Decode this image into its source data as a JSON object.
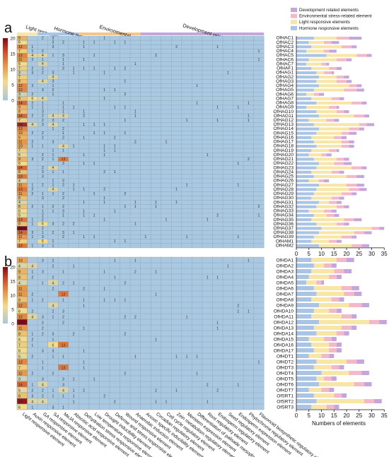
{
  "panels": {
    "a": "a",
    "b": "b"
  },
  "category_groups": {
    "light": "Light responsive elements",
    "hormone": "Hormone responsive elements",
    "env": "Environmental stress-related element",
    "dev": "Development related elements"
  },
  "legend": {
    "items": [
      {
        "label": "Development related elements",
        "color": "#c5a6dc"
      },
      {
        "label": "Environmental stress-related element",
        "color": "#f3b9c8"
      },
      {
        "label": "Light responsive elements",
        "color": "#f7e6a6"
      },
      {
        "label": "Hormone responsive elements",
        "color": "#a9c4e4"
      }
    ]
  },
  "colorbar": {
    "ticks": [
      "20",
      "15",
      "10",
      "5",
      "0"
    ]
  },
  "columns": [
    "Light responsive element",
    "Auxin responsive element",
    "GA responsive element",
    "SA responsive element",
    "MeJA responsive element",
    "Abscisic acid responsive element",
    "Dehydration stress responsive element",
    "Low temperature responsive element",
    "Drought inducibility element",
    "Defense and stress responsive element",
    "Wound responsive element",
    "Anaerobic induction element",
    "Anoxic specific inducibility element",
    "Circadian regulatory element",
    "Cell cycle regulatory element",
    "Zein metabolism regulatory element",
    "Meristem expression element",
    "Differentiation of palisade mesophyll cells",
    "Root regulatory element",
    "Endosperm regulatory element",
    "Seed regulatory element",
    "Endosperm expression element",
    "Phytochrome regulatory element",
    "Flavonoid biosynthetic regulatory element"
  ],
  "axis_label": "Numbers of elements",
  "chart_data": [
    {
      "type": "heatmap",
      "panel": "a",
      "rows": [
        "OfHAC1",
        "OfHAC2",
        "OfHAC3",
        "OfHAC4",
        "OfHAC5",
        "OfHAC6",
        "OfHAC7",
        "OfHAF1",
        "OfHAG1",
        "OfHAG2",
        "OfHAG3",
        "OfHAG4",
        "OfHAG5",
        "OfHAG6",
        "OfHAG7",
        "OfHAG8",
        "OfHAG9",
        "OfHAG10",
        "OfHAG11",
        "OfHAG12",
        "OfHAG13",
        "OfHAG14",
        "OfHAG15",
        "OfHAG16",
        "OfHAG17",
        "OfHAG18",
        "OfHAG19",
        "OfHAG20",
        "OfHAG21",
        "OfHAG22",
        "OfHAG23",
        "OfHAG24",
        "OfHAG25",
        "OfHAG26",
        "OfHAG27",
        "OfHAG28",
        "OfHAG29",
        "OfHAG30",
        "OfHAG31",
        "OfHAG32",
        "OfHAG33",
        "OfHAG34",
        "OfHAG35",
        "OfHAG36",
        "OfHAG37",
        "OfHAG38",
        "OfHAG39",
        "OfHAM1",
        "OfHAM2"
      ],
      "first_column_values": [
        9,
        6,
        12,
        7,
        12,
        11,
        6,
        7,
        3,
        7,
        8,
        12,
        12,
        3,
        8,
        14,
        9,
        8,
        14,
        7,
        18,
        12,
        10,
        9,
        11,
        10,
        7,
        5,
        9,
        6,
        14,
        8,
        13,
        4,
        11,
        13,
        11,
        8,
        4,
        8,
        6,
        5,
        13,
        8,
        20,
        14,
        11,
        7,
        13
      ],
      "colorbar_range": [
        0,
        20
      ]
    },
    {
      "type": "bar",
      "stacked": true,
      "orientation": "horizontal",
      "panel": "a",
      "xlabel": "",
      "xlim": [
        0,
        35
      ],
      "xticks": [
        0,
        5,
        10,
        15,
        20,
        25,
        30,
        35
      ],
      "categories": [
        "OfHAC1",
        "OfHAC2",
        "OfHAC3",
        "OfHAC4",
        "OfHAC5",
        "OfHAC6",
        "OfHAC7",
        "OfHAF1",
        "OfHAG1",
        "OfHAG2",
        "OfHAG3",
        "OfHAG4",
        "OfHAG5",
        "OfHAG6",
        "OfHAG7",
        "OfHAG8",
        "OfHAG9",
        "OfHAG10",
        "OfHAG11",
        "OfHAG12",
        "OfHAG13",
        "OfHAG14",
        "OfHAG15",
        "OfHAG16",
        "OfHAG17",
        "OfHAG18",
        "OfHAG19",
        "OfHAG20",
        "OfHAG21",
        "OfHAG22",
        "OfHAG23",
        "OfHAG24",
        "OfHAG25",
        "OfHAG26",
        "OfHAG27",
        "OfHAG28",
        "OfHAG29",
        "OfHAG30",
        "OfHAG31",
        "OfHAG32",
        "OfHAG33",
        "OfHAG34",
        "OfHAG35",
        "OfHAG36",
        "OfHAG37",
        "OfHAG38",
        "OfHAG39",
        "OfHAM1",
        "OfHAM2"
      ],
      "series": [
        {
          "name": "Hormone responsive elements",
          "values": [
            7,
            5,
            6,
            4,
            12,
            5,
            4,
            6,
            8,
            9,
            8,
            9,
            7,
            4,
            6,
            8,
            4,
            8,
            9,
            5,
            7,
            9,
            8,
            6,
            7,
            8,
            6,
            5,
            7,
            9,
            8,
            6,
            7,
            5,
            9,
            8,
            7,
            6,
            9,
            8,
            5,
            7,
            6,
            8,
            10,
            9,
            7,
            6,
            9
          ]
        },
        {
          "name": "Light responsive elements",
          "values": [
            9,
            6,
            12,
            7,
            12,
            11,
            6,
            7,
            3,
            7,
            8,
            12,
            12,
            3,
            8,
            14,
            9,
            8,
            14,
            7,
            18,
            12,
            10,
            9,
            11,
            10,
            7,
            5,
            9,
            6,
            14,
            8,
            13,
            4,
            11,
            13,
            11,
            8,
            4,
            8,
            6,
            5,
            13,
            8,
            20,
            14,
            11,
            7,
            13
          ]
        },
        {
          "name": "Environmental stress-related element",
          "values": [
            5,
            3,
            4,
            2,
            4,
            4,
            2,
            3,
            3,
            3,
            4,
            3,
            5,
            2,
            3,
            4,
            3,
            3,
            4,
            3,
            3,
            4,
            3,
            3,
            3,
            3,
            3,
            2,
            3,
            4,
            4,
            3,
            4,
            2,
            4,
            4,
            4,
            3,
            3,
            3,
            3,
            3,
            4,
            3,
            3,
            4,
            4,
            3,
            4
          ]
        },
        {
          "name": "Development related elements",
          "values": [
            5,
            3,
            2,
            3,
            2,
            2,
            1,
            2,
            1,
            2,
            2,
            2,
            3,
            2,
            2,
            2,
            1,
            2,
            2,
            2,
            3,
            2,
            3,
            2,
            2,
            2,
            1,
            2,
            2,
            3,
            2,
            2,
            3,
            2,
            3,
            3,
            2,
            2,
            2,
            2,
            2,
            2,
            3,
            2,
            2,
            3,
            2,
            2,
            3
          ]
        }
      ]
    },
    {
      "type": "heatmap",
      "panel": "b",
      "rows": [
        "OfHDA1",
        "OfHDA2",
        "OfHDA3",
        "OfHDA4",
        "OfHDA5",
        "OfHDA6",
        "OfHDA7",
        "OfHDA8",
        "OfHDA9",
        "OfHDA10",
        "OfHDA11",
        "OfHDA12",
        "OfHDA13",
        "OfHDA14",
        "OfHDA15",
        "OfHDA16",
        "OfHDA17",
        "OfHDT1",
        "OfHDT2",
        "OfHDT3",
        "OfHDT4",
        "OfHDT5",
        "OfHDT6",
        "OfHDT7",
        "OfSRT1",
        "OfSRT2",
        "OfSRT3"
      ],
      "first_column_values": [
        10,
        4,
        9,
        8,
        4,
        11,
        11,
        8,
        12,
        6,
        12,
        20,
        11,
        8,
        6,
        7,
        6,
        5,
        12,
        7,
        11,
        3,
        14,
        5,
        8,
        19,
        6
      ],
      "colorbar_range": [
        0,
        20
      ]
    },
    {
      "type": "bar",
      "stacked": true,
      "orientation": "horizontal",
      "panel": "b",
      "xlabel": "Numbers of elements",
      "xlim": [
        0,
        35
      ],
      "xticks": [
        0,
        5,
        10,
        15,
        20,
        25,
        30,
        35
      ],
      "categories": [
        "OfHDA1",
        "OfHDA2",
        "OfHDA3",
        "OfHDA4",
        "OfHDA5",
        "OfHDA6",
        "OfHDA7",
        "OfHDA8",
        "OfHDA9",
        "OfHDA10",
        "OfHDA11",
        "OfHDA12",
        "OfHDA13",
        "OfHDA14",
        "OfHDA15",
        "OfHDA16",
        "OfHDA17",
        "OfHDT1",
        "OfHDT2",
        "OfHDT3",
        "OfHDT4",
        "OfHDT5",
        "OfHDT6",
        "OfHDT7",
        "OfSRT1",
        "OfSRT2",
        "OfSRT3"
      ],
      "series": [
        {
          "name": "Hormone responsive elements",
          "values": [
            6,
            7,
            6,
            5,
            4,
            7,
            8,
            6,
            9,
            7,
            6,
            9,
            7,
            8,
            5,
            6,
            7,
            5,
            8,
            7,
            10,
            8,
            9,
            5,
            7,
            8,
            6
          ]
        },
        {
          "name": "Light responsive elements",
          "values": [
            10,
            4,
            9,
            8,
            4,
            11,
            11,
            8,
            12,
            6,
            12,
            20,
            11,
            8,
            6,
            7,
            6,
            5,
            12,
            7,
            11,
            3,
            14,
            5,
            8,
            19,
            6
          ]
        },
        {
          "name": "Environmental stress-related element",
          "values": [
            4,
            3,
            4,
            3,
            2,
            4,
            4,
            3,
            5,
            3,
            4,
            4,
            4,
            3,
            3,
            3,
            3,
            3,
            4,
            3,
            5,
            3,
            4,
            3,
            3,
            4,
            3
          ]
        },
        {
          "name": "Development related elements",
          "values": [
            3,
            2,
            3,
            2,
            1,
            3,
            3,
            2,
            3,
            2,
            2,
            3,
            2,
            2,
            2,
            2,
            2,
            2,
            3,
            2,
            3,
            2,
            3,
            2,
            2,
            3,
            2
          ]
        }
      ]
    }
  ]
}
